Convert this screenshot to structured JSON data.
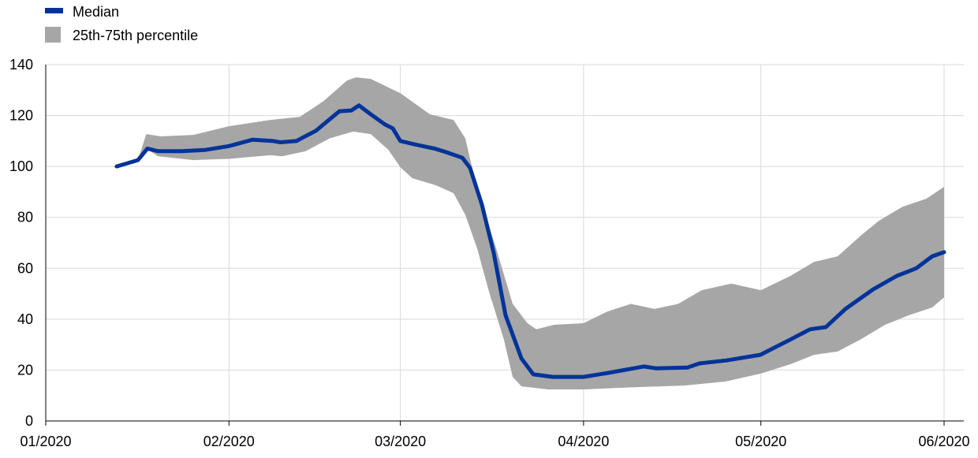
{
  "chart_data": {
    "type": "line",
    "title": "",
    "xlabel": "",
    "ylabel": "",
    "x_unit": "days since 1 January 2020",
    "xlim": [
      0,
      152
    ],
    "ylim": [
      0,
      140
    ],
    "grid": true,
    "legend_position": "top-left",
    "x_ticks": [
      {
        "day": 0,
        "label": "01/2020"
      },
      {
        "day": 31,
        "label": "02/2020"
      },
      {
        "day": 60,
        "label": "03/2020"
      },
      {
        "day": 91,
        "label": "04/2020"
      },
      {
        "day": 121,
        "label": "05/2020"
      },
      {
        "day": 152,
        "label": "06/2020"
      }
    ],
    "y_ticks": [
      0,
      20,
      40,
      60,
      80,
      100,
      120,
      140
    ],
    "legend": [
      {
        "name": "Median",
        "color": "#003399",
        "kind": "line"
      },
      {
        "name": "25th-75th percentile",
        "color": "#a6a6a6",
        "kind": "area"
      }
    ],
    "series": [
      {
        "name": "Median",
        "x": [
          12,
          15.6,
          17.2,
          19,
          23,
          27,
          31,
          35,
          38.5,
          39.7,
          42.4,
          45.7,
          49.7,
          51.7,
          53,
          55,
          57.4,
          58.7,
          60,
          62.4,
          64.4,
          65.8,
          67.8,
          70.5,
          71.8,
          73.8,
          75.8,
          77.8,
          80.5,
          82.5,
          85.8,
          91,
          95.2,
          101.2,
          103.2,
          108.6,
          110.6,
          115.2,
          120.9,
          126,
          129.3,
          132,
          135.3,
          140,
          144,
          147.3,
          150,
          152
        ],
        "values": [
          100,
          102.5,
          107,
          106,
          106,
          106.5,
          108,
          110.5,
          110,
          109.5,
          110,
          114,
          121.7,
          122,
          124,
          120.5,
          116.5,
          115,
          110,
          108.7,
          107.7,
          107,
          105.6,
          103.4,
          99.4,
          85,
          66,
          41.5,
          24.5,
          18.3,
          17.3,
          17.3,
          18.9,
          21.4,
          20.7,
          21,
          22.6,
          23.8,
          26,
          32,
          36,
          36.9,
          44,
          51.7,
          57,
          60,
          64.7,
          66.3
        ]
      },
      {
        "name": "25th-75th percentile (upper)",
        "x": [
          15.6,
          17,
          19.5,
          25,
          31,
          38,
          43,
          47,
          51,
          52.5,
          55,
          60,
          65,
          69,
          71,
          73,
          76,
          79,
          81.5,
          83,
          86,
          91,
          95,
          99,
          103,
          107,
          111,
          116,
          121,
          126,
          130,
          134,
          138,
          141,
          145,
          149,
          152
        ],
        "values": [
          102.5,
          112.7,
          111.8,
          112.4,
          115.8,
          118.3,
          119.5,
          125.7,
          133.8,
          135,
          134.4,
          128.8,
          120.5,
          118.3,
          111,
          91,
          69.4,
          46,
          38.4,
          36,
          37.8,
          38.4,
          43,
          46,
          44,
          46,
          51.4,
          54,
          51.4,
          57,
          62.5,
          64.7,
          73,
          78.7,
          84.2,
          87.3,
          92
        ]
      },
      {
        "name": "25th-75th percentile (lower)",
        "x": [
          15.6,
          17,
          19,
          25,
          31,
          38,
          40,
          44,
          48,
          52,
          55,
          58,
          60,
          62,
          66,
          69,
          71,
          73,
          75,
          77.5,
          79,
          80.5,
          85,
          91,
          100,
          108,
          115,
          121,
          126,
          130,
          134,
          138,
          142,
          146,
          150,
          152
        ],
        "values": [
          102.5,
          107,
          104,
          102.5,
          103,
          104.4,
          104,
          106,
          111,
          113.7,
          112.7,
          106.5,
          99.7,
          95.4,
          92.6,
          89.5,
          81,
          67.8,
          50.8,
          32.2,
          17.3,
          13.6,
          12.4,
          12.4,
          13.3,
          13.9,
          15.5,
          18.6,
          22.3,
          26,
          27.3,
          32.2,
          37.8,
          41.5,
          44.6,
          48.6
        ]
      }
    ]
  }
}
